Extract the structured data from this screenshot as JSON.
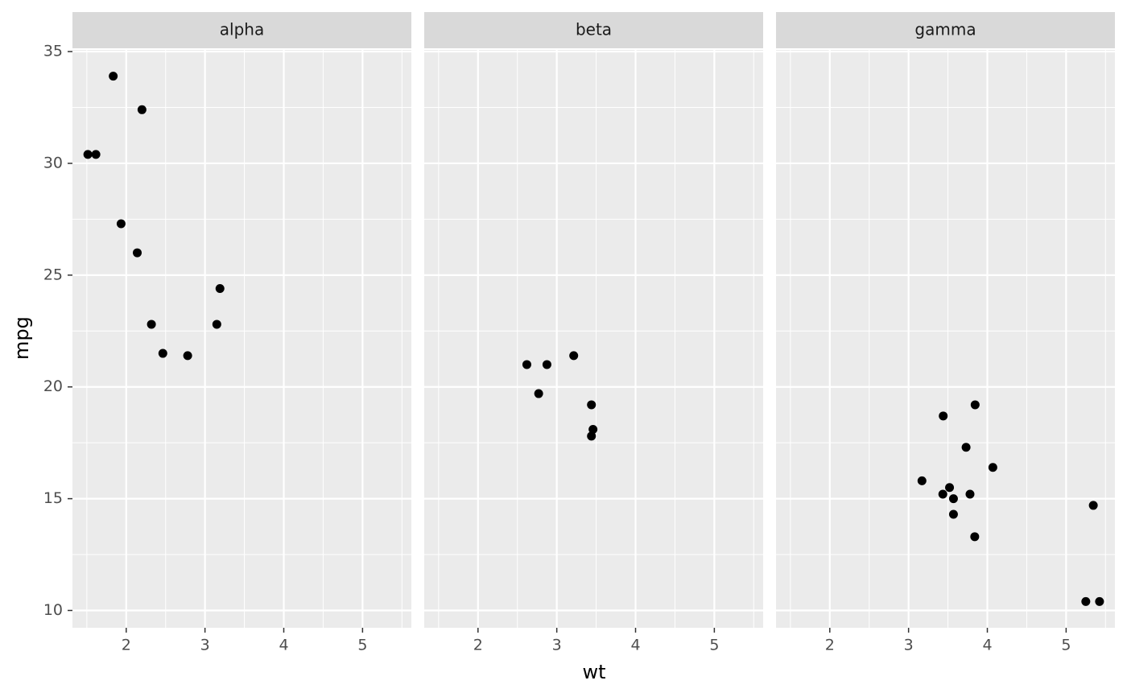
{
  "chart_data": {
    "type": "scatter",
    "xlabel": "wt",
    "ylabel": "mpg",
    "color": "#000000",
    "grid": true,
    "xlim": [
      1.31745,
      5.61955
    ],
    "ylim": [
      9.225,
      35.075
    ],
    "xticks": [
      2,
      3,
      4,
      5
    ],
    "yticks": [
      10,
      15,
      20,
      25,
      30,
      35
    ],
    "facets": [
      {
        "title": "alpha",
        "x": [
          2.32,
          3.19,
          3.15,
          2.2,
          1.615,
          1.835,
          2.465,
          1.935,
          2.14,
          1.513,
          2.78
        ],
        "values": [
          22.8,
          24.4,
          22.8,
          32.4,
          30.4,
          33.9,
          21.5,
          27.3,
          26.0,
          30.4,
          21.4
        ]
      },
      {
        "title": "beta",
        "x": [
          2.62,
          2.875,
          3.215,
          3.46,
          3.44,
          3.44,
          2.77
        ],
        "values": [
          21.0,
          21.0,
          21.4,
          18.1,
          19.2,
          17.8,
          19.7
        ]
      },
      {
        "title": "gamma",
        "x": [
          3.44,
          3.57,
          4.07,
          3.73,
          3.78,
          5.25,
          5.424,
          5.345,
          3.52,
          3.435,
          3.84,
          3.845,
          3.17,
          3.57
        ],
        "values": [
          18.7,
          14.3,
          16.4,
          17.3,
          15.2,
          10.4,
          10.4,
          14.7,
          15.5,
          15.2,
          13.3,
          19.2,
          15.8,
          15.0
        ]
      }
    ]
  }
}
